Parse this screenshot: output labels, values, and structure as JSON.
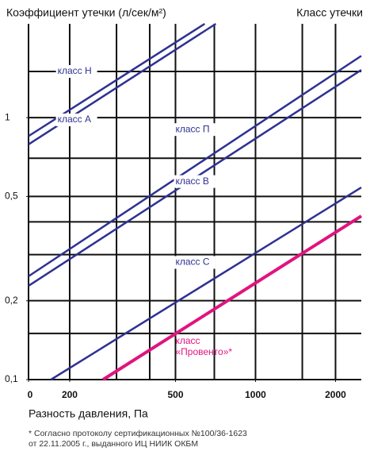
{
  "chart_data": {
    "type": "line",
    "title": "Коэффициент утечки (л/сек/м²)",
    "subtitle": "Класс утечки",
    "x_label": "Разность давления, Па",
    "footnote": [
      "* Согласно протоколу сертификационных №100/36-1623",
      "от 22.11.2005 г., выданного ИЦ НИИК ОКБМ"
    ],
    "log_x": true,
    "log_y": true,
    "grid": true,
    "xlim": [
      140,
      2500
    ],
    "ylim": [
      0.1,
      2.28
    ],
    "xticks": [
      {
        "value": 140,
        "label": "0"
      },
      200,
      500,
      1000,
      2000
    ],
    "xgrid": [
      200,
      300,
      400,
      500,
      700,
      1000,
      1500,
      2000
    ],
    "yticks": [
      {
        "value": 0.1,
        "label": "0,1"
      },
      {
        "value": 0.2,
        "label": "0,2"
      },
      {
        "value": 0.5,
        "label": "0,5"
      },
      1
    ],
    "ygrid": [
      0.15,
      0.2,
      0.3,
      0.4,
      0.5,
      0.7,
      1,
      1.5
    ],
    "series": [
      {
        "name": "класс Н",
        "color": "#2e3192",
        "x": [
          140,
          644
        ],
        "values": [
          0.85,
          2.28
        ],
        "label_at": [
          180,
          1.5
        ]
      },
      {
        "name": "класс А",
        "color": "#2e3192",
        "x": [
          140,
          709
        ],
        "values": [
          0.79,
          2.28
        ],
        "label_at": [
          180,
          0.98
        ]
      },
      {
        "name": "класс П",
        "color": "#2e3192",
        "x": [
          140,
          2500
        ],
        "values": [
          0.248,
          1.72
        ],
        "label_at": [
          500,
          0.9
        ]
      },
      {
        "name": "класс В",
        "color": "#2e3192",
        "x": [
          140,
          2500
        ],
        "values": [
          0.228,
          1.52
        ],
        "label_at": [
          500,
          0.57
        ]
      },
      {
        "name": "класс С",
        "color": "#2e3192",
        "x": [
          170,
          2500
        ],
        "values": [
          0.1,
          0.541
        ],
        "label_at": [
          500,
          0.28
        ]
      },
      {
        "name": [
          "класс",
          "«Провенто»*"
        ],
        "color": "#e0147f",
        "x": [
          267,
          2500
        ],
        "values": [
          0.1,
          0.421
        ],
        "label_at": [
          500,
          0.14
        ]
      }
    ]
  }
}
